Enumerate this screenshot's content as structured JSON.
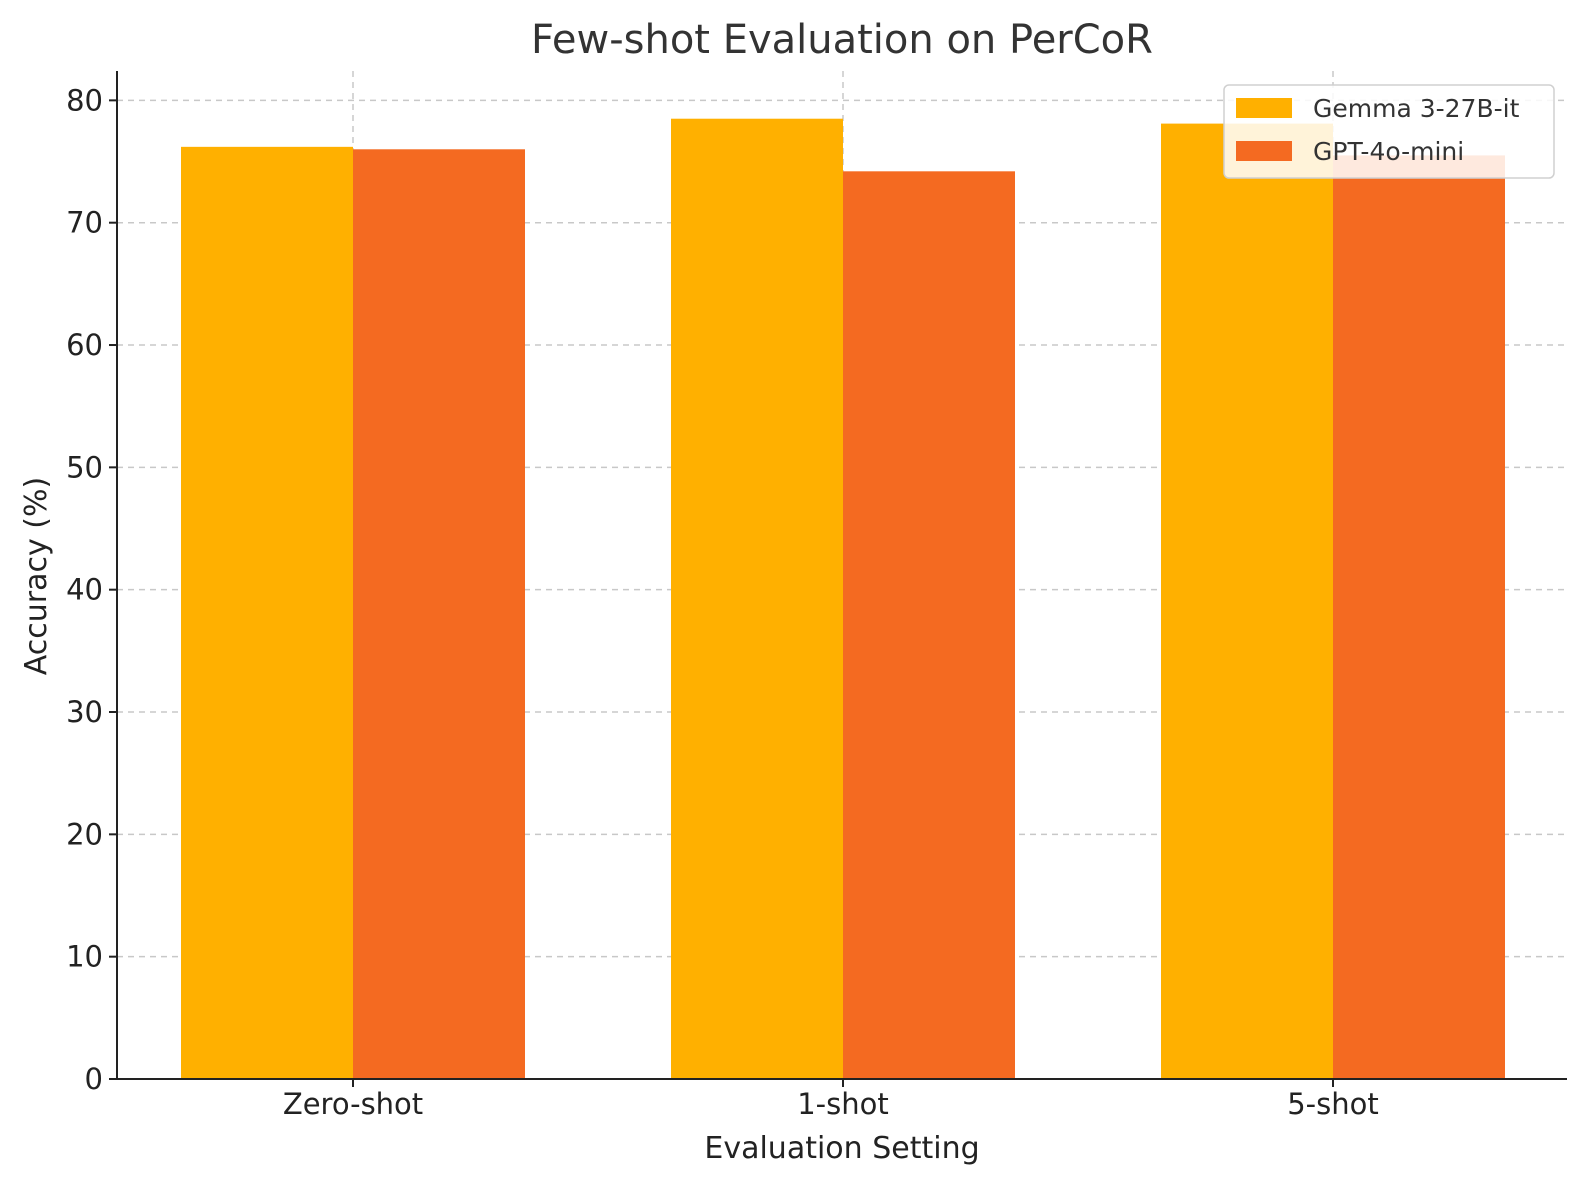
{
  "chart_data": {
    "type": "bar",
    "title": "Few-shot Evaluation on PerCoR",
    "xlabel": "Evaluation Setting",
    "ylabel": "Accuracy (%)",
    "categories": [
      "Zero-shot",
      "1-shot",
      "5-shot"
    ],
    "series": [
      {
        "name": "Gemma 3-27B-it",
        "color": "#FFB000",
        "values": [
          76.2,
          78.5,
          78.1
        ]
      },
      {
        "name": "GPT-4o-mini",
        "color": "#F46A21",
        "values": [
          76.0,
          74.2,
          75.5
        ]
      }
    ],
    "ylim": [
      0,
      82.4
    ],
    "yticks": [
      0,
      10,
      20,
      30,
      40,
      50,
      60,
      70,
      80
    ],
    "grid": true,
    "legend": "top-right"
  }
}
